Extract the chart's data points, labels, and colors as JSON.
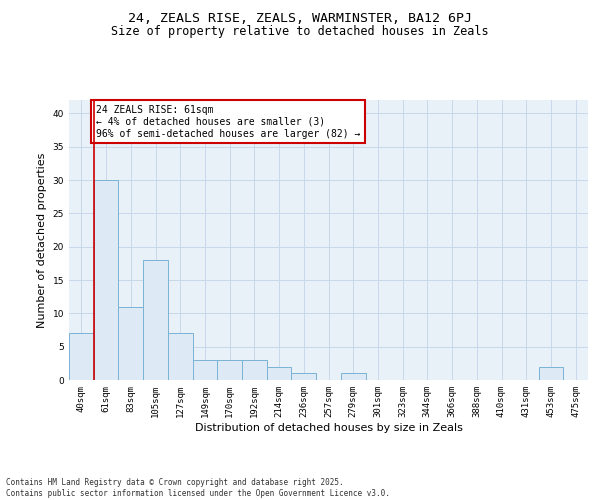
{
  "title1": "24, ZEALS RISE, ZEALS, WARMINSTER, BA12 6PJ",
  "title2": "Size of property relative to detached houses in Zeals",
  "xlabel": "Distribution of detached houses by size in Zeals",
  "ylabel": "Number of detached properties",
  "bins": [
    "40sqm",
    "61sqm",
    "83sqm",
    "105sqm",
    "127sqm",
    "149sqm",
    "170sqm",
    "192sqm",
    "214sqm",
    "236sqm",
    "257sqm",
    "279sqm",
    "301sqm",
    "323sqm",
    "344sqm",
    "366sqm",
    "388sqm",
    "410sqm",
    "431sqm",
    "453sqm",
    "475sqm"
  ],
  "values": [
    7,
    30,
    11,
    18,
    7,
    3,
    3,
    3,
    2,
    1,
    0,
    1,
    0,
    0,
    0,
    0,
    0,
    0,
    0,
    2,
    0
  ],
  "bar_color": "#ddeaf5",
  "bar_edge_color": "#7ab3d4",
  "vline_x": 0.5,
  "vline_color": "#cc0000",
  "annotation_text": "24 ZEALS RISE: 61sqm\n← 4% of detached houses are smaller (3)\n96% of semi-detached houses are larger (82) →",
  "annotation_box_color": "white",
  "annotation_box_edge": "#cc0000",
  "ylim": [
    0,
    42
  ],
  "yticks": [
    0,
    5,
    10,
    15,
    20,
    25,
    30,
    35,
    40
  ],
  "grid_color": "#c8d8ea",
  "bg_color": "#e8f1f8",
  "footer_text": "Contains HM Land Registry data © Crown copyright and database right 2025.\nContains public sector information licensed under the Open Government Licence v3.0.",
  "title_fontsize": 9.5,
  "subtitle_fontsize": 8.5,
  "tick_fontsize": 6.5,
  "ylabel_fontsize": 8,
  "xlabel_fontsize": 8,
  "annot_fontsize": 7,
  "footer_fontsize": 5.5
}
